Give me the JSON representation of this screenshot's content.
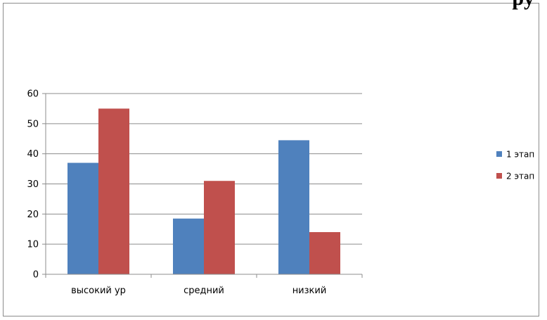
{
  "corner_text": "py",
  "chart_data": {
    "type": "bar",
    "categories": [
      "высокий ур",
      "средний",
      "низкий"
    ],
    "series": [
      {
        "name": "1 этап",
        "values": [
          37,
          18.5,
          44.5
        ],
        "color": "#4f81bd"
      },
      {
        "name": "2 этап",
        "values": [
          55,
          31,
          14
        ],
        "color": "#c0504d"
      }
    ],
    "ylim": [
      0,
      60
    ],
    "yticks": [
      0,
      10,
      20,
      30,
      40,
      50,
      60
    ],
    "grid": true,
    "legend": "right"
  }
}
